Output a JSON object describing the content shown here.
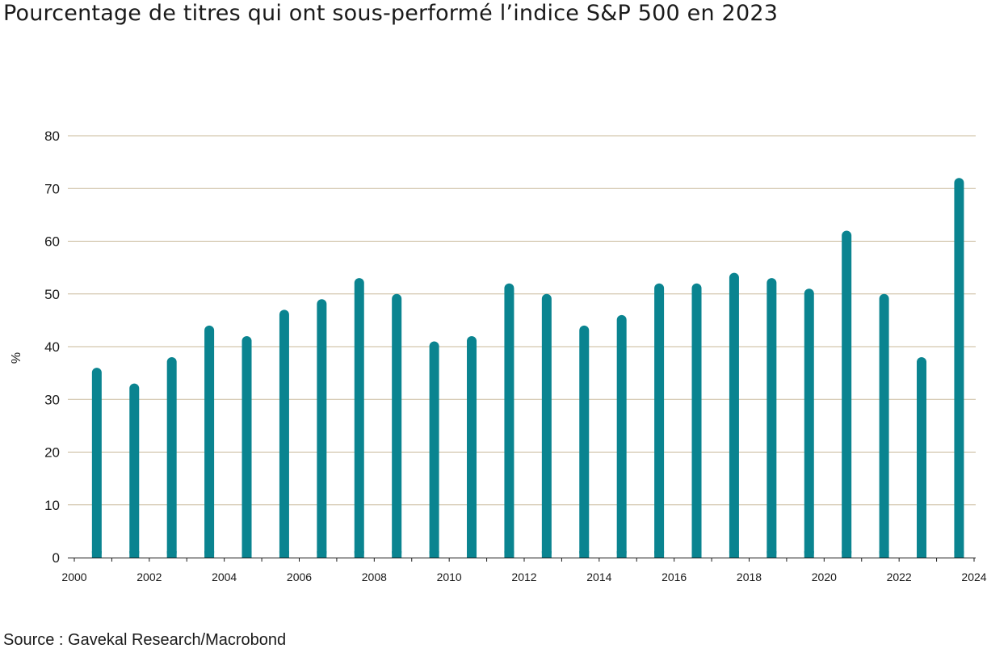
{
  "chart_data": {
    "type": "bar",
    "title": "Pourcentage de titres qui ont sous-performé l’indice S&P 500 en 2023",
    "ylabel": "%",
    "xlabel": "",
    "source": "Source : Gavekal Research/Macrobond",
    "ylim": [
      0,
      80
    ],
    "yticks": [
      0,
      10,
      20,
      30,
      40,
      50,
      60,
      70,
      80
    ],
    "xlim": [
      2000,
      2024
    ],
    "xticks": [
      2000,
      2002,
      2004,
      2006,
      2008,
      2010,
      2012,
      2014,
      2016,
      2018,
      2020,
      2022,
      2024
    ],
    "grid": true,
    "bar_color": "#0a8490",
    "grid_color": "#c8b99a",
    "categories": [
      "2000",
      "2001",
      "2002",
      "2003",
      "2004",
      "2005",
      "2006",
      "2007",
      "2008",
      "2009",
      "2010",
      "2011",
      "2012",
      "2013",
      "2014",
      "2015",
      "2016",
      "2017",
      "2018",
      "2019",
      "2020",
      "2021",
      "2022",
      "2023"
    ],
    "values": [
      36,
      33,
      38,
      44,
      42,
      47,
      49,
      53,
      50,
      41,
      42,
      52,
      50,
      44,
      46,
      52,
      52,
      54,
      53,
      51,
      62,
      50,
      38,
      72
    ]
  }
}
